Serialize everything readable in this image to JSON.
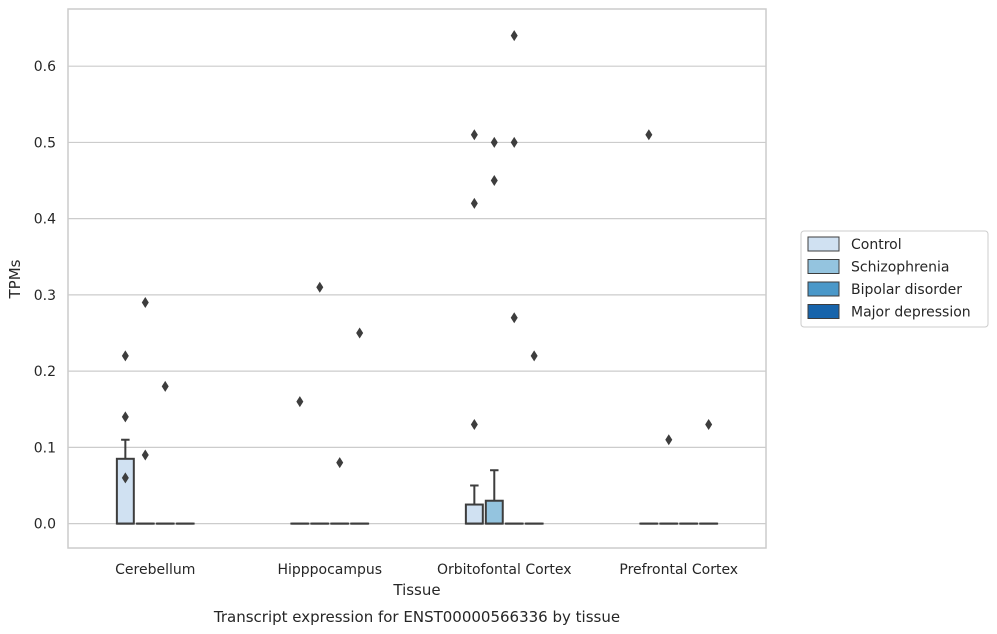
{
  "chart_data": {
    "type": "box",
    "title": "",
    "caption": "Transcript expression for ENST00000566336 by tissue",
    "xlabel": "Tissue",
    "ylabel": "TPMs",
    "ylim": [
      -0.032,
      0.675
    ],
    "yticks": [
      0.0,
      0.1,
      0.2,
      0.3,
      0.4,
      0.5,
      0.6
    ],
    "ytick_labels": [
      "0.0",
      "0.1",
      "0.2",
      "0.3",
      "0.4",
      "0.5",
      "0.6"
    ],
    "grid": "horizontal",
    "legend_placement": "outside-right",
    "categories": [
      "Cerebellum",
      "Hipppocampus",
      "Orbitofontal Cortex",
      "Prefrontal Cortex"
    ],
    "series": [
      {
        "name": "Control",
        "color": "#d0e1f2",
        "boxes": [
          {
            "q1": 0.0,
            "median": 0.0,
            "q3": 0.085,
            "whisker_low": 0.0,
            "whisker_high": 0.11,
            "outliers": [
              0.22,
              0.14,
              0.06
            ]
          },
          {
            "q1": 0.0,
            "median": 0.0,
            "q3": 0.0,
            "whisker_low": 0.0,
            "whisker_high": 0.0,
            "outliers": [
              0.16
            ]
          },
          {
            "q1": 0.0,
            "median": 0.0,
            "q3": 0.025,
            "whisker_low": 0.0,
            "whisker_high": 0.05,
            "outliers": [
              0.51,
              0.42,
              0.13
            ]
          },
          {
            "q1": 0.0,
            "median": 0.0,
            "q3": 0.0,
            "whisker_low": 0.0,
            "whisker_high": 0.0,
            "outliers": [
              0.51
            ]
          }
        ]
      },
      {
        "name": "Schizophrenia",
        "color": "#94c4df",
        "boxes": [
          {
            "q1": 0.0,
            "median": 0.0,
            "q3": 0.0,
            "whisker_low": 0.0,
            "whisker_high": 0.0,
            "outliers": [
              0.29,
              0.09
            ]
          },
          {
            "q1": 0.0,
            "median": 0.0,
            "q3": 0.0,
            "whisker_low": 0.0,
            "whisker_high": 0.0,
            "outliers": [
              0.31
            ]
          },
          {
            "q1": 0.0,
            "median": 0.0,
            "q3": 0.03,
            "whisker_low": 0.0,
            "whisker_high": 0.07,
            "outliers": [
              0.5,
              0.45
            ]
          },
          {
            "q1": 0.0,
            "median": 0.0,
            "q3": 0.0,
            "whisker_low": 0.0,
            "whisker_high": 0.0,
            "outliers": [
              0.11
            ]
          }
        ]
      },
      {
        "name": "Bipolar disorder",
        "color": "#4a98c9",
        "boxes": [
          {
            "q1": 0.0,
            "median": 0.0,
            "q3": 0.0,
            "whisker_low": 0.0,
            "whisker_high": 0.0,
            "outliers": [
              0.18
            ]
          },
          {
            "q1": 0.0,
            "median": 0.0,
            "q3": 0.0,
            "whisker_low": 0.0,
            "whisker_high": 0.0,
            "outliers": [
              0.08
            ]
          },
          {
            "q1": 0.0,
            "median": 0.0,
            "q3": 0.0,
            "whisker_low": 0.0,
            "whisker_high": 0.0,
            "outliers": [
              0.64,
              0.5,
              0.27
            ]
          },
          {
            "q1": 0.0,
            "median": 0.0,
            "q3": 0.0,
            "whisker_low": 0.0,
            "whisker_high": 0.0,
            "outliers": []
          }
        ]
      },
      {
        "name": "Major depression",
        "color": "#1764ab",
        "boxes": [
          {
            "q1": 0.0,
            "median": 0.0,
            "q3": 0.0,
            "whisker_low": 0.0,
            "whisker_high": 0.0,
            "outliers": []
          },
          {
            "q1": 0.0,
            "median": 0.0,
            "q3": 0.0,
            "whisker_low": 0.0,
            "whisker_high": 0.0,
            "outliers": [
              0.25
            ]
          },
          {
            "q1": 0.0,
            "median": 0.0,
            "q3": 0.0,
            "whisker_low": 0.0,
            "whisker_high": 0.0,
            "outliers": [
              0.22
            ]
          },
          {
            "q1": 0.0,
            "median": 0.0,
            "q3": 0.0,
            "whisker_low": 0.0,
            "whisker_high": 0.0,
            "outliers": [
              0.13
            ]
          }
        ]
      }
    ]
  }
}
